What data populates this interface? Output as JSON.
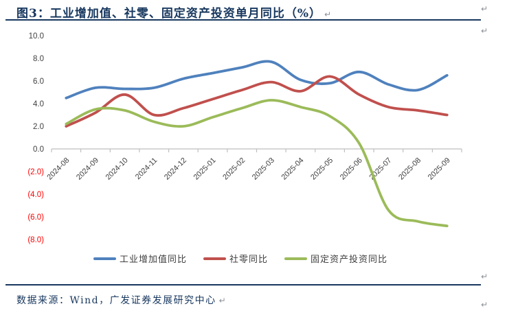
{
  "title": {
    "text": "图3：工业增加值、社零、固定资产投资单月同比（%）"
  },
  "footer": {
    "source_text": "数据来源：Wind，广发证券发展研究中心"
  },
  "marks": {
    "paragraph": "↵"
  },
  "colors": {
    "background": "#FFFFFF",
    "title_text": "#17375E",
    "rule": "#17375E",
    "axis_line": "#BFBFBF",
    "axis_label": "#404040",
    "negative_label": "#FF0000",
    "legend_label": "#404040",
    "paragraph_mark": "#8A8F98"
  },
  "chart_data": {
    "type": "line",
    "smooth": true,
    "grid": false,
    "legend_position": "bottom",
    "title": "工业增加值、社零、固定资产投资单月同比（%）",
    "xlabel": "",
    "ylabel": "",
    "ylim": [
      -8,
      10
    ],
    "ytick_step": 2,
    "x_axis_at_zero": true,
    "yticks": [
      {
        "label": "10.0",
        "value": 10
      },
      {
        "label": "8.0",
        "value": 8
      },
      {
        "label": "6.0",
        "value": 6
      },
      {
        "label": "4.0",
        "value": 4
      },
      {
        "label": "2.0",
        "value": 2
      },
      {
        "label": "0.0",
        "value": 0
      },
      {
        "label": "(2.0)",
        "value": -2
      },
      {
        "label": "(4.0)",
        "value": -4
      },
      {
        "label": "(6.0)",
        "value": -6
      },
      {
        "label": "(8.0)",
        "value": -8
      }
    ],
    "categories": [
      "2024-08",
      "2024-09",
      "2024-10",
      "2024-11",
      "2024-12",
      "2025-01",
      "2025-02",
      "2025-03",
      "2025-04",
      "2025-05",
      "2025-06",
      "2025-07",
      "2025-08",
      "2025-09"
    ],
    "series": [
      {
        "name": "工业增加值同比",
        "color": "#4F81BD",
        "values": [
          4.5,
          5.4,
          5.3,
          5.4,
          6.2,
          6.7,
          7.2,
          7.7,
          6.1,
          5.8,
          6.8,
          5.7,
          5.2,
          6.5
        ]
      },
      {
        "name": "社零同比",
        "color": "#C0504D",
        "values": [
          2.0,
          3.2,
          4.8,
          3.0,
          3.6,
          4.4,
          5.2,
          5.9,
          5.1,
          6.4,
          4.8,
          3.7,
          3.4,
          3.0
        ]
      },
      {
        "name": "固定资产投资同比",
        "color": "#9BBB59",
        "values": [
          2.2,
          3.5,
          3.4,
          2.4,
          2.0,
          2.8,
          3.6,
          4.3,
          3.7,
          2.9,
          0.5,
          -5.4,
          -6.4,
          -6.8
        ]
      }
    ]
  }
}
